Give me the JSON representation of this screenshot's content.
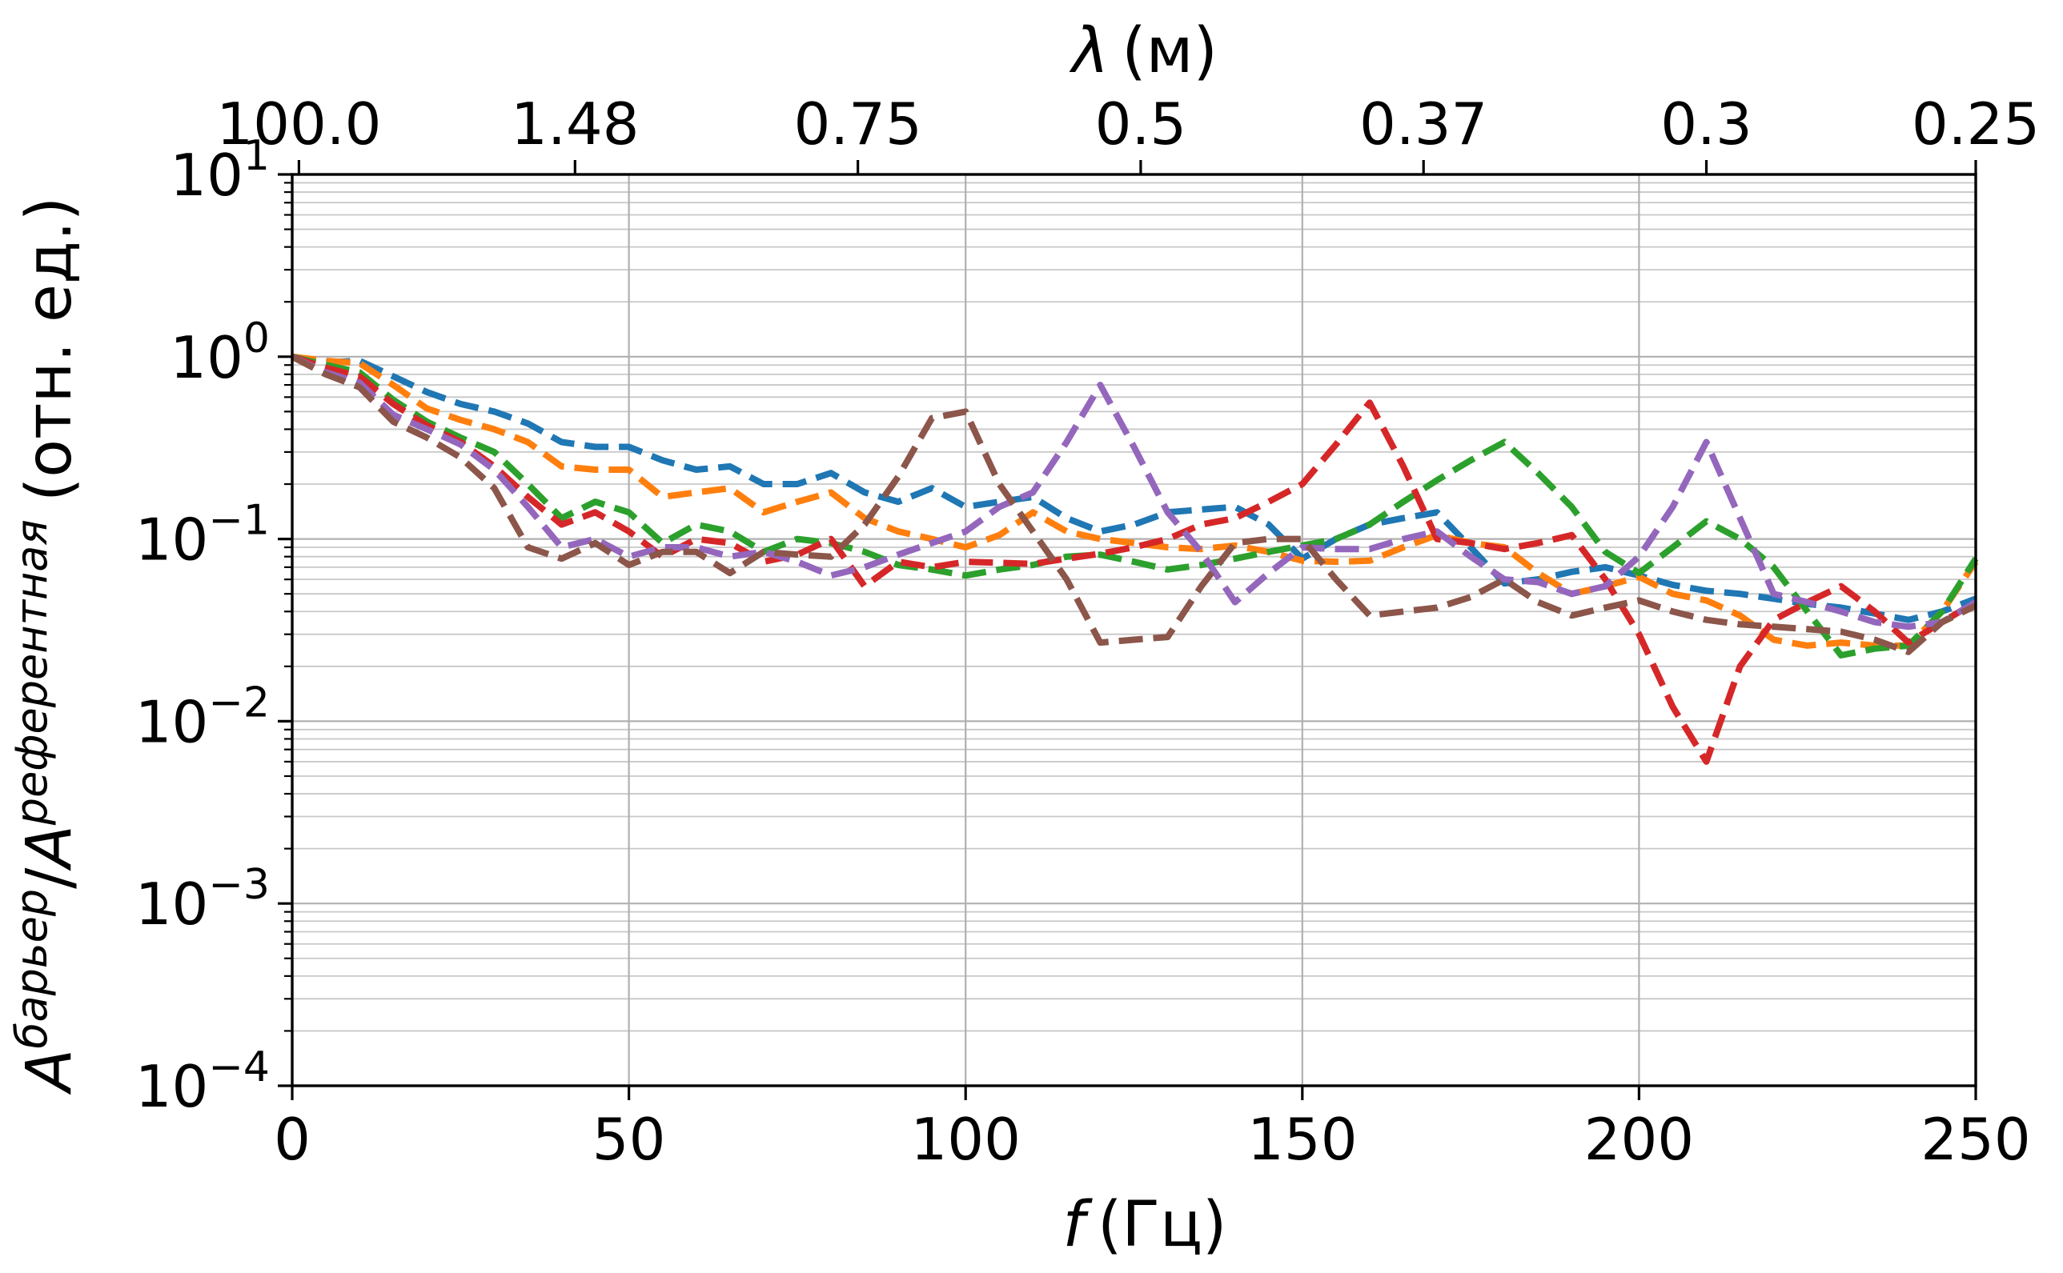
{
  "chart_data": {
    "type": "line",
    "xlabel": "f (Гц)",
    "xlabel_parts": {
      "var": "f",
      "unit": "(Гц)"
    },
    "ylabel": "A^барьер/A^референтная (отн. ед.)",
    "ylabel_parts": {
      "base1": "A",
      "sup1": "барьер",
      "slash": "/",
      "base2": "A",
      "sup2": "референтная",
      "unit": "(отн. ед.)"
    },
    "top_xlabel": "λ (м)",
    "top_xlabel_parts": {
      "var": "λ",
      "unit": "(м)"
    },
    "xlim": [
      0,
      250
    ],
    "ylim": [
      0.0001,
      10
    ],
    "yscale": "log",
    "grid": "major and minor",
    "x_ticks": [
      0,
      50,
      100,
      150,
      200,
      250
    ],
    "x_tick_labels": [
      "0",
      "50",
      "100",
      "150",
      "200",
      "250"
    ],
    "y_ticks": [
      0.0001,
      0.001,
      0.01,
      0.1,
      1,
      10
    ],
    "y_tick_labels": [
      {
        "base": "10",
        "exp": "−4"
      },
      {
        "base": "10",
        "exp": "−3"
      },
      {
        "base": "10",
        "exp": "−2"
      },
      {
        "base": "10",
        "exp": "−1"
      },
      {
        "base": "10",
        "exp": "0"
      },
      {
        "base": "10",
        "exp": "1"
      }
    ],
    "top_ticks": [
      {
        "f": 1,
        "label": "100.0"
      },
      {
        "f": 42,
        "label": "1.48"
      },
      {
        "f": 84,
        "label": "0.75"
      },
      {
        "f": 126,
        "label": "0.5"
      },
      {
        "f": 168,
        "label": "0.37"
      },
      {
        "f": 210,
        "label": "0.3"
      },
      {
        "f": 250,
        "label": "0.25"
      }
    ],
    "x": [
      0,
      5,
      10,
      15,
      20,
      25,
      30,
      35,
      40,
      45,
      50,
      55,
      60,
      65,
      70,
      75,
      80,
      85,
      90,
      95,
      100,
      105,
      110,
      115,
      120,
      125,
      130,
      135,
      140,
      145,
      150,
      155,
      160,
      165,
      170,
      175,
      180,
      185,
      190,
      195,
      200,
      205,
      210,
      215,
      220,
      225,
      230,
      235,
      240,
      245,
      250
    ],
    "series": [
      {
        "color": "#1f77b4",
        "values": [
          1.0,
          0.93,
          0.95,
          0.78,
          0.64,
          0.55,
          0.5,
          0.43,
          0.34,
          0.32,
          0.32,
          0.27,
          0.24,
          0.25,
          0.2,
          0.2,
          0.23,
          0.18,
          0.16,
          0.19,
          0.15,
          0.16,
          0.17,
          0.13,
          0.11,
          0.12,
          0.14,
          0.145,
          0.15,
          0.12,
          0.078,
          0.1,
          0.12,
          0.13,
          0.14,
          0.09,
          0.057,
          0.06,
          0.066,
          0.07,
          0.063,
          0.056,
          0.052,
          0.05,
          0.047,
          0.044,
          0.042,
          0.039,
          0.036,
          0.04,
          0.047
        ]
      },
      {
        "color": "#ff7f0e",
        "values": [
          1.0,
          0.95,
          0.92,
          0.7,
          0.52,
          0.45,
          0.4,
          0.34,
          0.25,
          0.24,
          0.24,
          0.17,
          0.18,
          0.19,
          0.14,
          0.16,
          0.18,
          0.13,
          0.11,
          0.1,
          0.09,
          0.105,
          0.14,
          0.11,
          0.1,
          0.095,
          0.09,
          0.088,
          0.092,
          0.085,
          0.076,
          0.075,
          0.076,
          0.09,
          0.105,
          0.095,
          0.09,
          0.065,
          0.05,
          0.055,
          0.062,
          0.05,
          0.046,
          0.038,
          0.028,
          0.026,
          0.027,
          0.026,
          0.026,
          0.04,
          0.075
        ]
      },
      {
        "color": "#2ca02c",
        "values": [
          1.0,
          0.9,
          0.82,
          0.58,
          0.44,
          0.36,
          0.3,
          0.2,
          0.13,
          0.16,
          0.14,
          0.095,
          0.12,
          0.11,
          0.085,
          0.1,
          0.095,
          0.085,
          0.072,
          0.068,
          0.063,
          0.068,
          0.072,
          0.08,
          0.082,
          0.075,
          0.068,
          0.072,
          0.078,
          0.085,
          0.092,
          0.1,
          0.12,
          0.16,
          0.21,
          0.27,
          0.34,
          0.23,
          0.15,
          0.085,
          0.065,
          0.09,
          0.125,
          0.1,
          0.07,
          0.04,
          0.023,
          0.025,
          0.026,
          0.04,
          0.078
        ]
      },
      {
        "color": "#d62728",
        "values": [
          1.0,
          0.87,
          0.78,
          0.55,
          0.42,
          0.34,
          0.25,
          0.17,
          0.12,
          0.14,
          0.11,
          0.08,
          0.1,
          0.095,
          0.075,
          0.082,
          0.1,
          0.055,
          0.075,
          0.07,
          0.075,
          0.074,
          0.073,
          0.078,
          0.083,
          0.09,
          0.1,
          0.12,
          0.13,
          0.16,
          0.2,
          0.33,
          0.56,
          0.25,
          0.1,
          0.095,
          0.088,
          0.095,
          0.105,
          0.06,
          0.03,
          0.012,
          0.006,
          0.02,
          0.036,
          0.045,
          0.055,
          0.04,
          0.027,
          0.035,
          0.045
        ]
      },
      {
        "color": "#9467bd",
        "values": [
          1.0,
          0.82,
          0.72,
          0.48,
          0.4,
          0.33,
          0.24,
          0.15,
          0.09,
          0.1,
          0.08,
          0.09,
          0.09,
          0.08,
          0.085,
          0.075,
          0.063,
          0.07,
          0.082,
          0.095,
          0.11,
          0.15,
          0.18,
          0.34,
          0.7,
          0.32,
          0.14,
          0.085,
          0.045,
          0.065,
          0.09,
          0.088,
          0.088,
          0.1,
          0.11,
          0.08,
          0.06,
          0.058,
          0.05,
          0.055,
          0.08,
          0.15,
          0.34,
          0.13,
          0.05,
          0.045,
          0.04,
          0.035,
          0.033,
          0.035,
          0.045
        ]
      },
      {
        "color": "#8c564b",
        "values": [
          1.0,
          0.8,
          0.68,
          0.44,
          0.36,
          0.28,
          0.19,
          0.09,
          0.078,
          0.095,
          0.072,
          0.085,
          0.085,
          0.065,
          0.085,
          0.082,
          0.08,
          0.12,
          0.22,
          0.46,
          0.5,
          0.2,
          0.11,
          0.06,
          0.027,
          0.028,
          0.029,
          0.055,
          0.095,
          0.1,
          0.1,
          0.06,
          0.038,
          0.04,
          0.042,
          0.048,
          0.06,
          0.045,
          0.038,
          0.042,
          0.046,
          0.04,
          0.036,
          0.034,
          0.033,
          0.032,
          0.031,
          0.028,
          0.024,
          0.035,
          0.043
        ]
      }
    ]
  }
}
